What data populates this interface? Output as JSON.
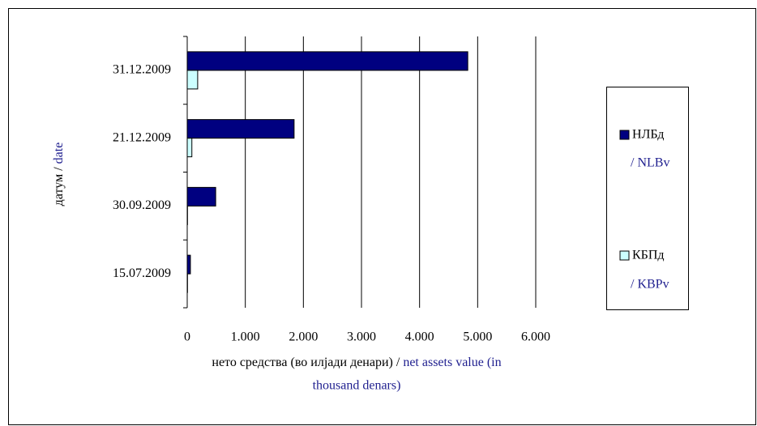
{
  "chart_data": {
    "type": "hbar",
    "categories": [
      "15.07.2009",
      "30.09.2009",
      "21.12.2009",
      "31.12.2009"
    ],
    "series": [
      {
        "name": "НЛБд",
        "name_en": "/ NLBv",
        "color": "#000080",
        "values": [
          55,
          490,
          1840,
          4830
        ]
      },
      {
        "name": "КБПд",
        "name_en": "/ KBPv",
        "color": "#ccffff",
        "values": [
          5,
          5,
          80,
          180
        ]
      }
    ],
    "xlim": [
      0,
      6000
    ],
    "xticks": [
      0,
      {
        "value": 1000,
        "label": "1.000"
      },
      {
        "value": 2000,
        "label": "2.000"
      },
      {
        "value": 3000,
        "label": "3.000"
      },
      {
        "value": 4000,
        "label": "4.000"
      },
      {
        "value": 5000,
        "label": "5.000"
      },
      {
        "value": 6000,
        "label": "6.000"
      }
    ],
    "grid": true,
    "y_label": [
      "датум  / ",
      "date"
    ],
    "x_label": [
      "нето средства (во илјади денари) / ",
      "net assets value (in",
      "thousand denars)"
    ]
  }
}
